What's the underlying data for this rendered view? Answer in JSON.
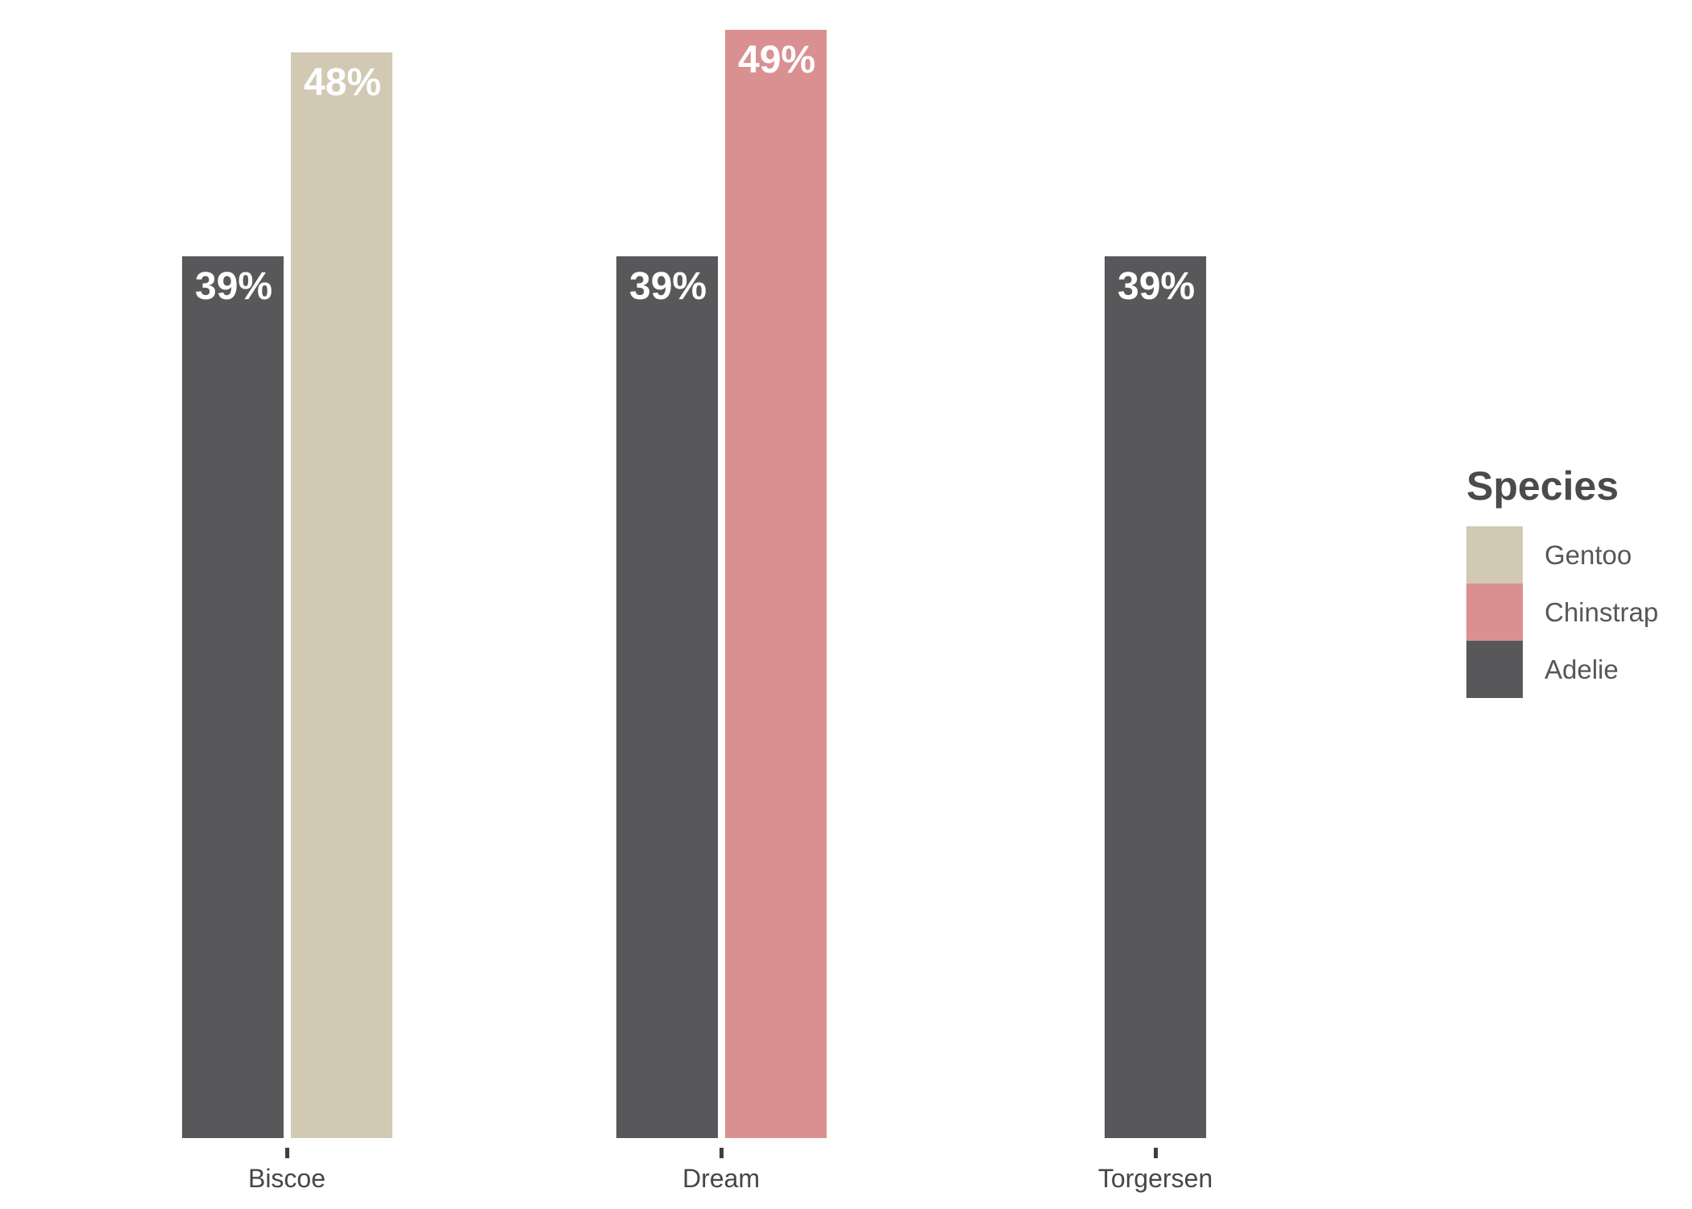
{
  "chart_data": {
    "type": "bar",
    "title": "",
    "xlabel": "",
    "ylabel": "",
    "categories": [
      "Biscoe",
      "Dream",
      "Torgersen"
    ],
    "ylim": [
      0,
      49
    ],
    "grid": false,
    "value_label_color": "#ffffff",
    "species_colors": {
      "Adelie": "#58585a",
      "Gentoo": "#d1c9b4",
      "Chinstrap": "#da9091"
    },
    "groups": [
      {
        "category": "Biscoe",
        "bars": [
          {
            "species": "Adelie",
            "value": 39,
            "label": "39%"
          },
          {
            "species": "Gentoo",
            "value": 48,
            "label": "48%"
          }
        ]
      },
      {
        "category": "Dream",
        "bars": [
          {
            "species": "Adelie",
            "value": 39,
            "label": "39%"
          },
          {
            "species": "Chinstrap",
            "value": 49,
            "label": "49%"
          }
        ]
      },
      {
        "category": "Torgersen",
        "bars": [
          {
            "species": "Adelie",
            "value": 39,
            "label": "39%"
          }
        ]
      }
    ],
    "legend": {
      "title": "Species",
      "position": "right",
      "entries": [
        {
          "label": "Gentoo",
          "color": "#d1c9b4"
        },
        {
          "label": "Chinstrap",
          "color": "#da9091"
        },
        {
          "label": "Adelie",
          "color": "#58585a"
        }
      ]
    }
  }
}
